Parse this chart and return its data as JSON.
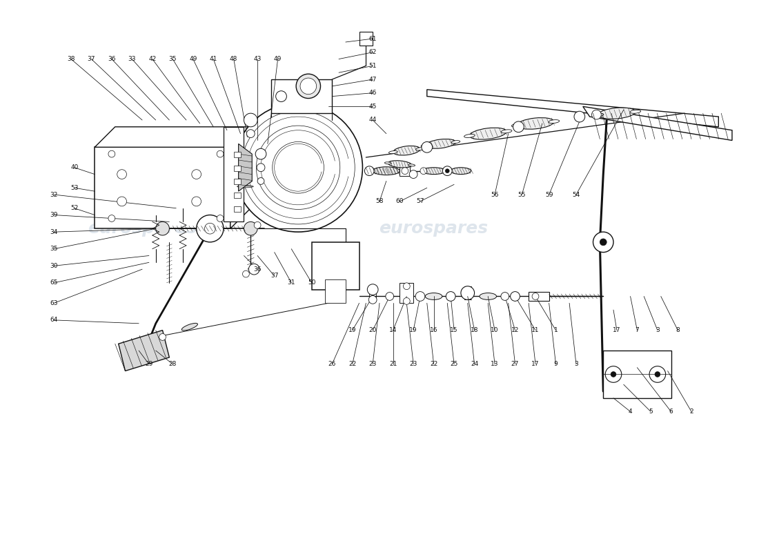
{
  "bg": "#ffffff",
  "lc": "#111111",
  "wm_color": "#c8d4e0",
  "fig_w": 11.0,
  "fig_h": 8.0,
  "dpi": 100,
  "xlim": [
    0,
    110
  ],
  "ylim": [
    0,
    80
  ]
}
